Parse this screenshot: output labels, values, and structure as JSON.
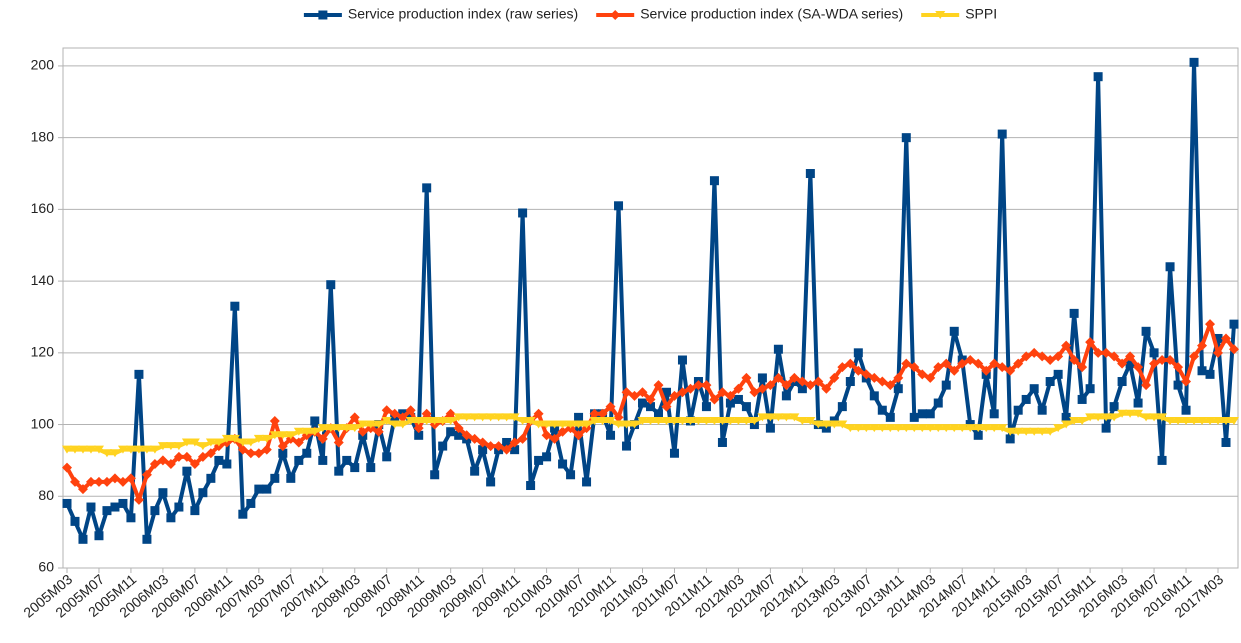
{
  "chart_data": {
    "type": "line",
    "categories": [
      "2005M03",
      null,
      null,
      null,
      "2005M07",
      null,
      null,
      null,
      "2005M11",
      null,
      null,
      null,
      "2006M03",
      null,
      null,
      null,
      "2006M07",
      null,
      null,
      null,
      "2006M11",
      null,
      null,
      null,
      "2007M03",
      null,
      null,
      null,
      "2007M07",
      null,
      null,
      null,
      "2007M11",
      null,
      null,
      null,
      "2008M03",
      null,
      null,
      null,
      "2008M07",
      null,
      null,
      null,
      "2008M11",
      null,
      null,
      null,
      "2009M03",
      null,
      null,
      null,
      "2009M07",
      null,
      null,
      null,
      "2009M11",
      null,
      null,
      null,
      "2010M03",
      null,
      null,
      null,
      "2010M07",
      null,
      null,
      null,
      "2010M11",
      null,
      null,
      null,
      "2011M03",
      null,
      null,
      null,
      "2011M07",
      null,
      null,
      null,
      "2011M11",
      null,
      null,
      null,
      "2012M03",
      null,
      null,
      null,
      "2012M07",
      null,
      null,
      null,
      "2012M11",
      null,
      null,
      null,
      "2013M03",
      null,
      null,
      null,
      "2013M07",
      null,
      null,
      null,
      "2013M11",
      null,
      null,
      null,
      "2014M03",
      null,
      null,
      null,
      "2014M07",
      null,
      null,
      null,
      "2014M11",
      null,
      null,
      null,
      "2015M03",
      null,
      null,
      null,
      "2015M07",
      null,
      null,
      null,
      "2015M11",
      null,
      null,
      null,
      "2016M03",
      null,
      null,
      null,
      "2016M07",
      null,
      null,
      null,
      "2016M11",
      null,
      null,
      null,
      "2017M03",
      null,
      null
    ],
    "series": [
      {
        "name": "Service production index (raw series)",
        "color": "#004586",
        "marker": "square",
        "values": [
          78,
          73,
          68,
          77,
          69,
          76,
          77,
          78,
          74,
          114,
          68,
          76,
          81,
          74,
          77,
          87,
          76,
          81,
          85,
          90,
          89,
          133,
          75,
          78,
          82,
          82,
          85,
          92,
          85,
          90,
          92,
          101,
          90,
          139,
          87,
          90,
          88,
          97,
          88,
          100,
          91,
          102,
          103,
          102,
          97,
          166,
          86,
          94,
          98,
          97,
          96,
          87,
          93,
          84,
          93,
          95,
          93,
          159,
          83,
          90,
          91,
          99,
          89,
          86,
          102,
          84,
          103,
          103,
          97,
          161,
          94,
          100,
          106,
          105,
          103,
          109,
          92,
          118,
          101,
          112,
          105,
          168,
          95,
          106,
          107,
          105,
          100,
          113,
          99,
          121,
          108,
          112,
          110,
          170,
          100,
          99,
          101,
          105,
          112,
          120,
          113,
          108,
          104,
          102,
          110,
          180,
          102,
          103,
          103,
          106,
          111,
          126,
          118,
          100,
          97,
          114,
          103,
          181,
          96,
          104,
          107,
          110,
          104,
          112,
          114,
          102,
          131,
          107,
          110,
          197,
          99,
          105,
          112,
          117,
          106,
          126,
          120,
          90,
          144,
          111,
          104,
          201,
          115,
          114,
          124,
          95,
          128
        ]
      },
      {
        "name": "Service production index (SA-WDA series)",
        "color": "#ff420e",
        "marker": "diamond",
        "values": [
          88,
          84,
          82,
          84,
          84,
          84,
          85,
          84,
          85,
          79,
          86,
          89,
          90,
          89,
          91,
          91,
          89,
          91,
          92,
          94,
          95,
          96,
          93,
          92,
          92,
          93,
          101,
          94,
          96,
          95,
          97,
          98,
          96,
          99,
          95,
          99,
          102,
          98,
          99,
          98,
          104,
          103,
          102,
          104,
          99,
          103,
          100,
          101,
          103,
          99,
          97,
          96,
          95,
          94,
          94,
          93,
          95,
          96,
          101,
          103,
          97,
          96,
          98,
          99,
          97,
          99,
          103,
          103,
          105,
          102,
          109,
          108,
          109,
          107,
          111,
          105,
          108,
          109,
          110,
          111,
          111,
          107,
          109,
          108,
          110,
          113,
          109,
          110,
          111,
          113,
          111,
          113,
          112,
          111,
          112,
          110,
          113,
          116,
          117,
          115,
          114,
          113,
          112,
          111,
          113,
          117,
          116,
          114,
          113,
          116,
          117,
          115,
          117,
          118,
          117,
          115,
          117,
          116,
          115,
          117,
          119,
          120,
          119,
          118,
          119,
          122,
          118,
          116,
          123,
          120,
          120,
          119,
          117,
          119,
          116,
          111,
          117,
          118,
          118,
          116,
          112,
          119,
          122,
          128,
          120,
          124,
          121
        ]
      },
      {
        "name": "SPPI",
        "color": "#ffd320",
        "marker": "triangle",
        "values": [
          93,
          93,
          93,
          93,
          93,
          92,
          92,
          93,
          93,
          93,
          93,
          93,
          94,
          94,
          94,
          95,
          95,
          94,
          95,
          95,
          96,
          96,
          95,
          95,
          96,
          96,
          97,
          97,
          97,
          98,
          98,
          98,
          99,
          99,
          99,
          99,
          99,
          100,
          100,
          100,
          101,
          100,
          100,
          101,
          101,
          101,
          101,
          101,
          101,
          102,
          102,
          102,
          102,
          102,
          102,
          102,
          102,
          101,
          101,
          100,
          100,
          100,
          100,
          100,
          100,
          100,
          101,
          101,
          101,
          100,
          100,
          100,
          101,
          101,
          101,
          101,
          101,
          101,
          101,
          101,
          101,
          101,
          101,
          101,
          101,
          101,
          101,
          102,
          102,
          102,
          102,
          102,
          101,
          101,
          100,
          100,
          100,
          100,
          99,
          99,
          99,
          99,
          99,
          99,
          99,
          99,
          99,
          99,
          99,
          99,
          99,
          99,
          99,
          99,
          99,
          99,
          99,
          99,
          98,
          98,
          98,
          98,
          98,
          98,
          99,
          100,
          101,
          101,
          102,
          102,
          102,
          102,
          103,
          103,
          103,
          102,
          102,
          102,
          101,
          101,
          101,
          101,
          101,
          101,
          101,
          101,
          101
        ]
      }
    ],
    "ylim": [
      60,
      205
    ],
    "yticks": [
      60,
      80,
      100,
      120,
      140,
      160,
      180,
      200
    ],
    "grid": true,
    "legend": "top"
  }
}
